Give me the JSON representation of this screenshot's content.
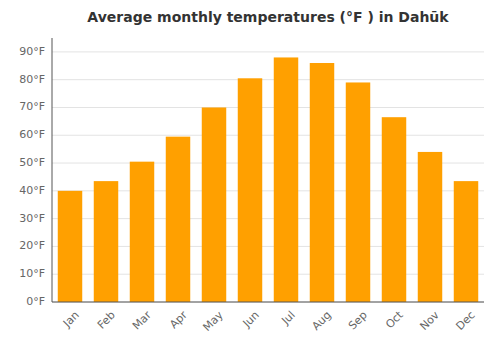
{
  "chart_data": {
    "type": "bar",
    "title": "Average monthly temperatures (°F ) in Dahūk",
    "categories": [
      "Jan",
      "Feb",
      "Mar",
      "Apr",
      "May",
      "Jun",
      "Jul",
      "Aug",
      "Sep",
      "Oct",
      "Nov",
      "Dec"
    ],
    "values": [
      40,
      43.5,
      50.5,
      59.5,
      70,
      80.5,
      88,
      86,
      79,
      66.5,
      54,
      43.5
    ],
    "color": "#FFA000",
    "ylim": [
      0,
      95
    ],
    "yticks": [
      {
        "value": 0,
        "label": "0°F"
      },
      {
        "value": 10,
        "label": "10°F"
      },
      {
        "value": 20,
        "label": "20°F"
      },
      {
        "value": 30,
        "label": "30°F"
      },
      {
        "value": 40,
        "label": "40°F"
      },
      {
        "value": 50,
        "label": "50°F"
      },
      {
        "value": 60,
        "label": "60°F"
      },
      {
        "value": 70,
        "label": "70°F"
      },
      {
        "value": 80,
        "label": "80°F"
      },
      {
        "value": 90,
        "label": "90°F"
      }
    ],
    "grid": true
  }
}
